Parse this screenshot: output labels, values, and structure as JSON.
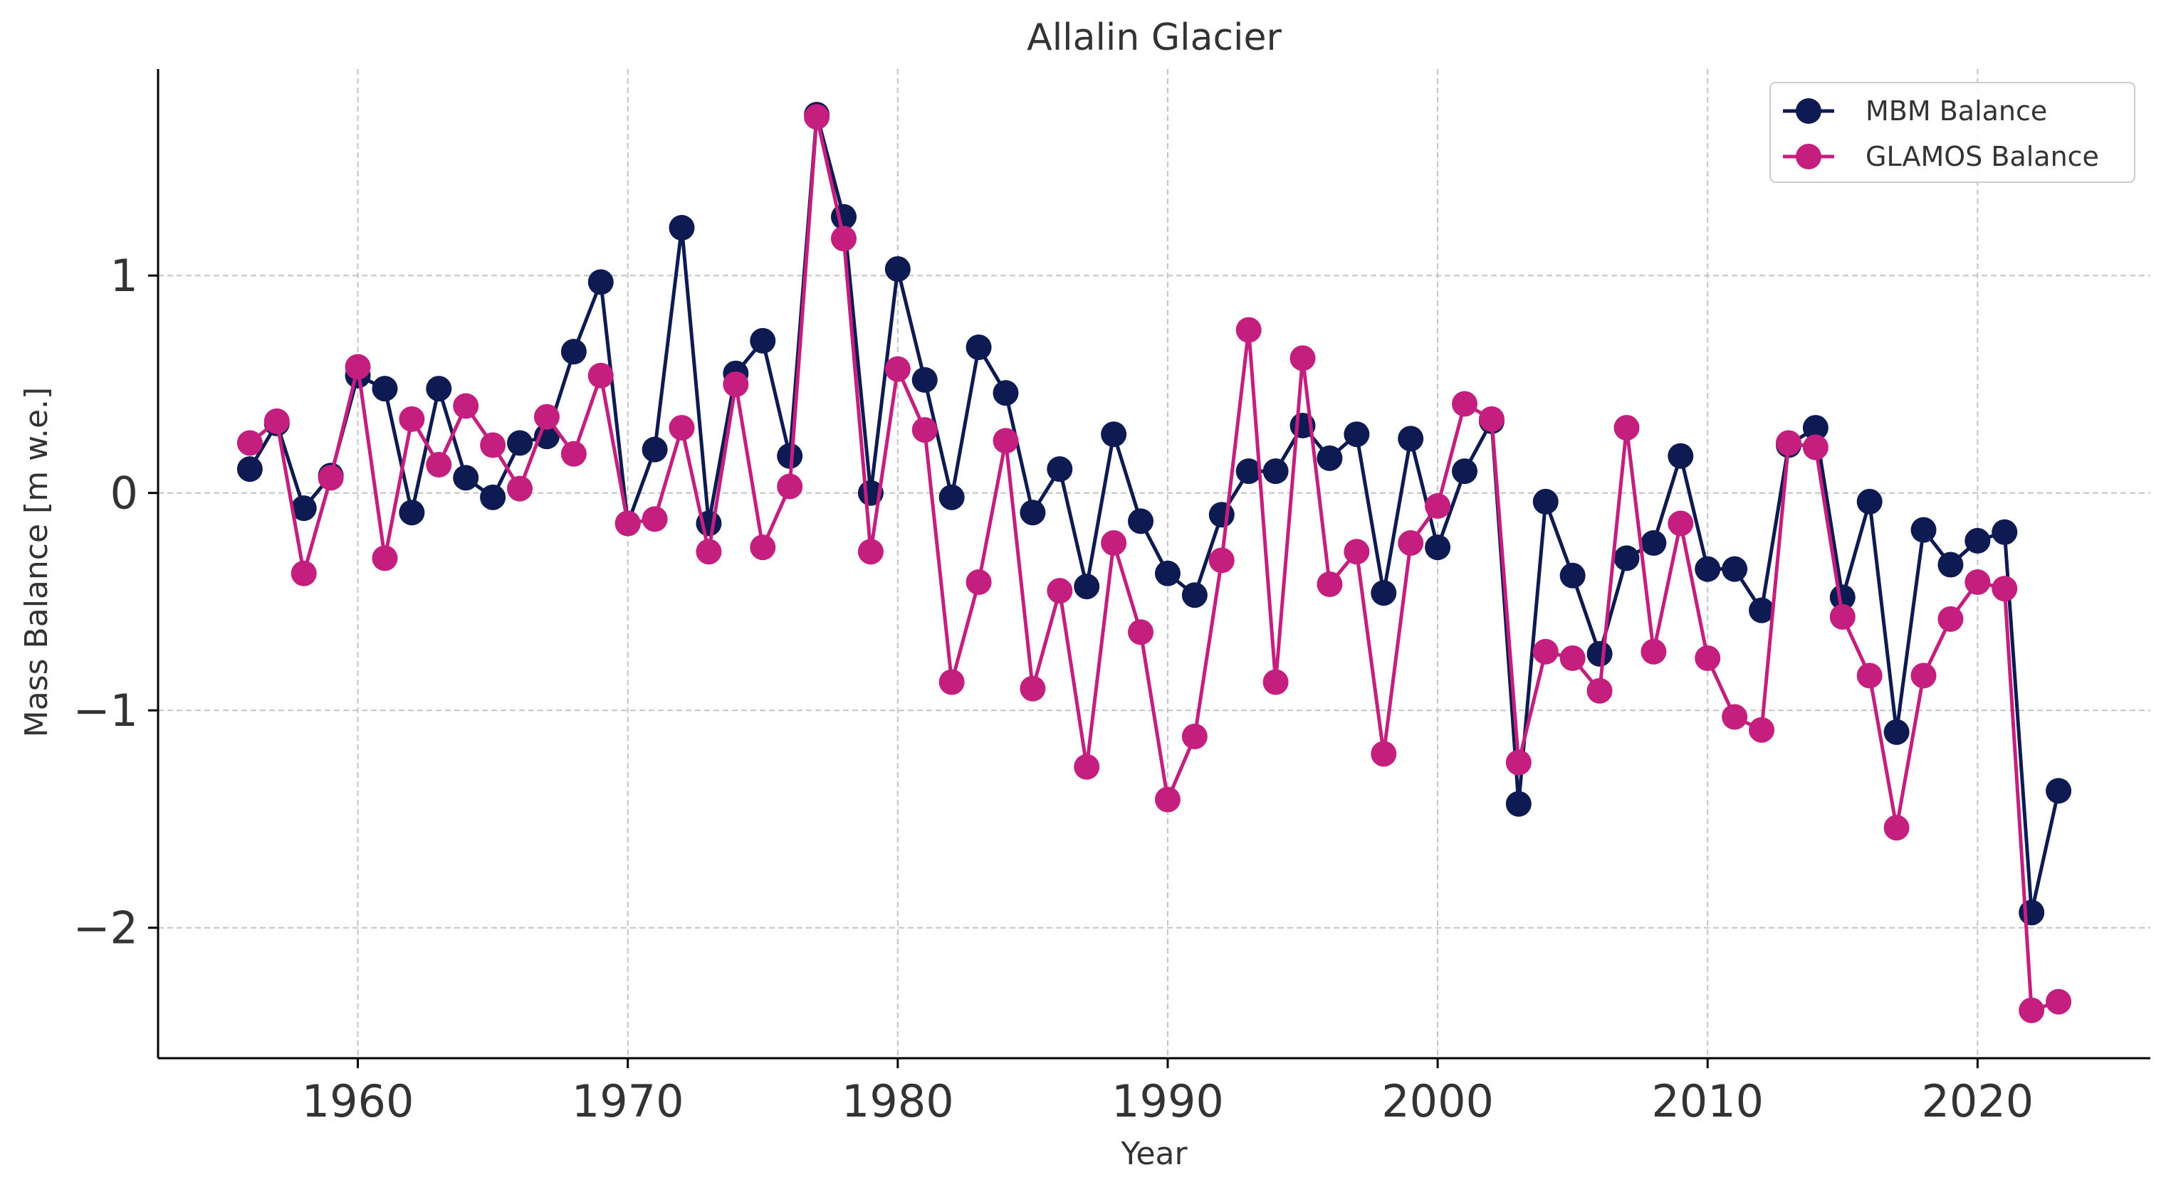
{
  "chart_data": {
    "type": "line",
    "title": "Allalin Glacier",
    "xlabel": "Year",
    "ylabel": "Mass Balance [m w.e.]",
    "xlim": [
      1952.6,
      2026.4
    ],
    "ylim": [
      -2.6,
      1.95
    ],
    "xticks": [
      1960,
      1970,
      1980,
      1990,
      2000,
      2010,
      2020
    ],
    "xtick_labels": [
      "1960",
      "1970",
      "1980",
      "1990",
      "2000",
      "2010",
      "2020"
    ],
    "yticks": [
      1,
      0,
      -1,
      -2
    ],
    "ytick_labels": [
      "1",
      "0",
      "−1",
      "−2"
    ],
    "grid": true,
    "legend_position": "top-right",
    "x": [
      1956,
      1957,
      1958,
      1959,
      1960,
      1961,
      1962,
      1963,
      1964,
      1965,
      1966,
      1967,
      1968,
      1969,
      1970,
      1971,
      1972,
      1973,
      1974,
      1975,
      1976,
      1977,
      1978,
      1979,
      1980,
      1981,
      1982,
      1983,
      1984,
      1985,
      1986,
      1987,
      1988,
      1989,
      1990,
      1991,
      1992,
      1993,
      1994,
      1995,
      1996,
      1997,
      1998,
      1999,
      2000,
      2001,
      2002,
      2003,
      2004,
      2005,
      2006,
      2007,
      2008,
      2009,
      2010,
      2011,
      2012,
      2013,
      2014,
      2015,
      2016,
      2017,
      2018,
      2019,
      2020,
      2021,
      2022,
      2023
    ],
    "series": [
      {
        "name": "MBM Balance",
        "color": "#0d1b52",
        "values": [
          0.11,
          0.32,
          -0.07,
          0.08,
          0.54,
          0.48,
          -0.09,
          0.48,
          0.07,
          -0.02,
          0.23,
          0.26,
          0.65,
          0.97,
          -0.14,
          0.2,
          1.22,
          -0.14,
          0.55,
          0.7,
          0.17,
          1.74,
          1.27,
          0.0,
          1.03,
          0.52,
          -0.02,
          0.67,
          0.46,
          -0.09,
          0.11,
          -0.43,
          0.27,
          -0.13,
          -0.37,
          -0.47,
          -0.1,
          0.1,
          0.1,
          0.31,
          0.16,
          0.27,
          -0.46,
          0.25,
          -0.25,
          0.1,
          0.33,
          -1.43,
          -0.04,
          -0.38,
          -0.74,
          -0.3,
          -0.23,
          0.17,
          -0.35,
          -0.35,
          -0.54,
          0.22,
          0.3,
          -0.48,
          -0.04,
          -1.1,
          -0.17,
          -0.33,
          -0.22,
          -0.18,
          -1.93,
          -1.37
        ]
      },
      {
        "name": "GLAMOS Balance",
        "color": "#c41e7e",
        "values": [
          0.23,
          0.33,
          -0.37,
          0.07,
          0.58,
          -0.3,
          0.34,
          0.13,
          0.4,
          0.22,
          0.02,
          0.35,
          0.18,
          0.54,
          -0.14,
          -0.12,
          0.3,
          -0.27,
          0.5,
          -0.25,
          0.03,
          1.73,
          1.17,
          -0.27,
          0.57,
          0.29,
          -0.87,
          -0.41,
          0.24,
          -0.9,
          -0.45,
          -1.26,
          -0.23,
          -0.64,
          -1.41,
          -1.12,
          -0.31,
          0.75,
          -0.87,
          0.62,
          -0.42,
          -0.27,
          -1.2,
          -0.23,
          -0.06,
          0.41,
          0.34,
          -1.24,
          -0.73,
          -0.76,
          -0.91,
          0.3,
          -0.73,
          -0.14,
          -0.76,
          -1.03,
          -1.09,
          0.23,
          0.21,
          -0.57,
          -0.84,
          -1.54,
          -0.84,
          -0.58,
          -0.41,
          -0.44,
          -2.38,
          -2.34
        ]
      }
    ]
  }
}
